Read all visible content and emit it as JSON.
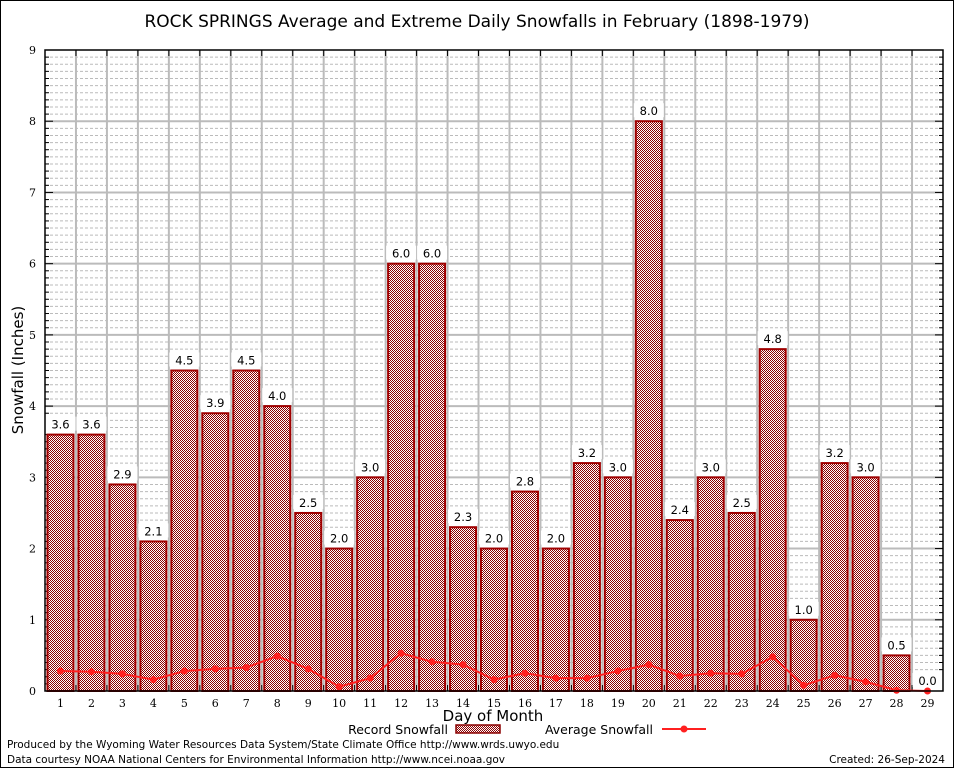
{
  "chart_data": {
    "type": "bar",
    "title": "ROCK SPRINGS Average and Extreme Daily Snowfalls in February (1898-1979)",
    "xlabel": "Day of Month",
    "ylabel": "Snowfall (Inches)",
    "ylim": [
      0,
      9
    ],
    "yticks": [
      "0",
      "1",
      "2",
      "3",
      "4",
      "5",
      "6",
      "7",
      "8",
      "9"
    ],
    "grid": true,
    "categories": [
      "1",
      "2",
      "3",
      "4",
      "5",
      "6",
      "7",
      "8",
      "9",
      "10",
      "11",
      "12",
      "13",
      "14",
      "15",
      "16",
      "17",
      "18",
      "19",
      "20",
      "21",
      "22",
      "23",
      "24",
      "25",
      "26",
      "27",
      "28",
      "29"
    ],
    "series": [
      {
        "name": "Record Snowfall",
        "type": "bar",
        "color": "#a00000",
        "values": [
          3.6,
          3.6,
          2.9,
          2.1,
          4.5,
          3.9,
          4.5,
          4.0,
          2.5,
          2.0,
          3.0,
          6.0,
          6.0,
          2.3,
          2.0,
          2.8,
          2.0,
          3.2,
          3.0,
          8.0,
          2.4,
          3.0,
          2.5,
          4.8,
          1.0,
          3.2,
          3.0,
          0.5,
          0.0
        ],
        "labels": [
          "3.6",
          "3.6",
          "2.9",
          "2.1",
          "4.5",
          "3.9",
          "4.5",
          "4.0",
          "2.5",
          "2.0",
          "3.0",
          "6.0",
          "6.0",
          "2.3",
          "2.0",
          "2.8",
          "2.0",
          "3.2",
          "3.0",
          "8.0",
          "2.4",
          "3.0",
          "2.5",
          "4.8",
          "1.0",
          "3.2",
          "3.0",
          "0.5",
          "0.0"
        ]
      },
      {
        "name": "Average Snowfall",
        "type": "line",
        "color": "#ff2020",
        "values": [
          0.28,
          0.27,
          0.24,
          0.16,
          0.28,
          0.31,
          0.33,
          0.49,
          0.31,
          0.06,
          0.18,
          0.53,
          0.41,
          0.37,
          0.16,
          0.25,
          0.18,
          0.18,
          0.28,
          0.37,
          0.21,
          0.25,
          0.24,
          0.48,
          0.08,
          0.22,
          0.13,
          0.01,
          0.0
        ]
      }
    ],
    "legend": {
      "position": "bottom",
      "items": [
        "Record Snowfall",
        "Average Snowfall"
      ]
    }
  },
  "footer": {
    "line1": "Produced by the Wyoming Water Resources Data System/State Climate Office http://www.wrds.uwyo.edu",
    "line2": "Data courtesy NOAA National Centers for Environmental Information http://www.ncei.noaa.gov",
    "created": "Created: 26-Sep-2024"
  }
}
